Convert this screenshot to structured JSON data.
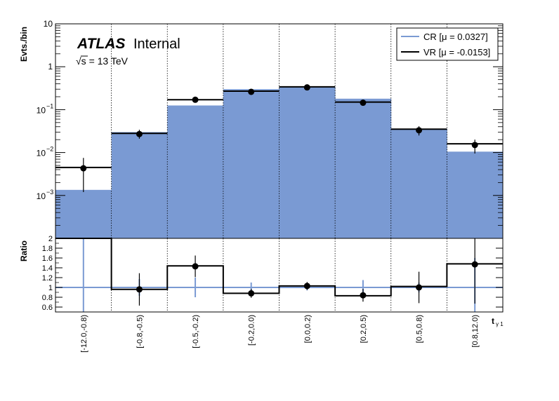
{
  "chart_data": {
    "type": "histogram-with-ratio",
    "bins": [
      "[-12.0,-0.8)",
      "[-0.8,-0.5)",
      "[-0.5,-0.2)",
      "[-0.2,0.0)",
      "[0.0,0.2)",
      "[0.2,0.5)",
      "[0.5,0.8)",
      "[0.8,12.0)"
    ],
    "xlabel": "t",
    "xlabel_sub": "γ 1",
    "ylabel": "Evts./bin",
    "y_scale": "log",
    "ylim": [
      0.0001,
      10
    ],
    "y_ticks": [
      {
        "value": 10,
        "label": "10"
      },
      {
        "value": 1,
        "label": "1"
      },
      {
        "value": 0.1,
        "base": "10",
        "exp": "−1"
      },
      {
        "value": 0.01,
        "base": "10",
        "exp": "−2"
      },
      {
        "value": 0.001,
        "base": "10",
        "exp": "−3"
      }
    ],
    "series": [
      {
        "name": "CR [μ = 0.0327]",
        "style": "filled-histogram",
        "color": "#7a9ad3",
        "values": [
          0.00135,
          0.03,
          0.125,
          0.3,
          0.34,
          0.18,
          0.036,
          0.0105
        ]
      },
      {
        "name": "VR [μ = -0.0153]",
        "style": "line-histogram",
        "color": "#000000",
        "values": [
          0.0045,
          0.028,
          0.17,
          0.27,
          0.34,
          0.15,
          0.035,
          0.016
        ]
      },
      {
        "name": "VR data points",
        "style": "points",
        "values": [
          0.0043,
          0.027,
          0.17,
          0.26,
          0.33,
          0.145,
          0.033,
          0.015
        ],
        "err_low": [
          0.0031,
          0.006,
          0.02,
          0.025,
          0.03,
          0.015,
          0.008,
          0.0055
        ],
        "err_high": [
          0.0032,
          0.007,
          0.02,
          0.025,
          0.03,
          0.02,
          0.008,
          0.005
        ]
      }
    ],
    "ratio": {
      "ylabel": "Ratio",
      "ylim": [
        0.5,
        2.0
      ],
      "y_ticks": [
        "0.6",
        "0.8",
        "1",
        "1.2",
        "1.4",
        "1.6",
        "1.8",
        "2"
      ],
      "reference_line": 1.0,
      "cr_error_half_width": [
        1.0,
        0.17,
        0.2,
        0.1,
        0.06,
        0.15,
        0.1,
        0.6
      ],
      "hist_values": [
        2.05,
        0.96,
        1.44,
        0.88,
        1.03,
        0.83,
        1.02,
        1.48
      ],
      "point_values": [
        null,
        0.96,
        1.43,
        0.88,
        1.03,
        0.84,
        1.0,
        1.47
      ],
      "point_err": [
        null,
        0.33,
        0.22,
        0.09,
        0.08,
        0.13,
        0.32,
        0.8
      ]
    },
    "annotations": {
      "experiment": "ATLAS",
      "status": "Internal",
      "energy": "√s = 13 TeV"
    },
    "legend_position": "top-right",
    "grid": "vertical dotted at bin edges"
  }
}
